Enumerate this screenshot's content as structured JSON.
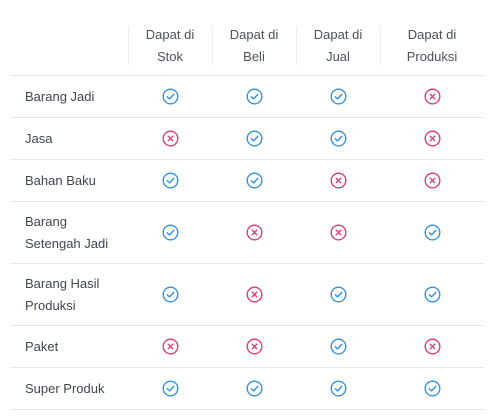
{
  "table": {
    "columns": [
      {
        "line1": "Dapat di",
        "line2": "Stok"
      },
      {
        "line1": "Dapat di",
        "line2": "Beli"
      },
      {
        "line1": "Dapat di",
        "line2": "Jual"
      },
      {
        "line1": "Dapat di",
        "line2": "Produksi"
      }
    ],
    "rows": [
      {
        "line1": "Barang Jadi",
        "line2": "",
        "values": [
          true,
          true,
          true,
          false
        ]
      },
      {
        "line1": "Jasa",
        "line2": "",
        "values": [
          false,
          true,
          true,
          false
        ]
      },
      {
        "line1": "Bahan Baku",
        "line2": "",
        "values": [
          true,
          true,
          false,
          false
        ]
      },
      {
        "line1": "Barang",
        "line2": "Setengah Jadi",
        "values": [
          true,
          false,
          false,
          true
        ]
      },
      {
        "line1": "Barang Hasil",
        "line2": "Produksi",
        "values": [
          true,
          false,
          true,
          true
        ]
      },
      {
        "line1": "Paket",
        "line2": "",
        "values": [
          false,
          false,
          true,
          false
        ]
      },
      {
        "line1": "Super Produk",
        "line2": "",
        "values": [
          true,
          true,
          true,
          true
        ]
      }
    ]
  },
  "icons": {
    "yes": "check-circle-icon",
    "no": "x-circle-icon"
  },
  "colors": {
    "yes": "#2f8fe0",
    "no": "#e0347a",
    "divider": "#e3e6ea",
    "text": "#3f4650"
  }
}
